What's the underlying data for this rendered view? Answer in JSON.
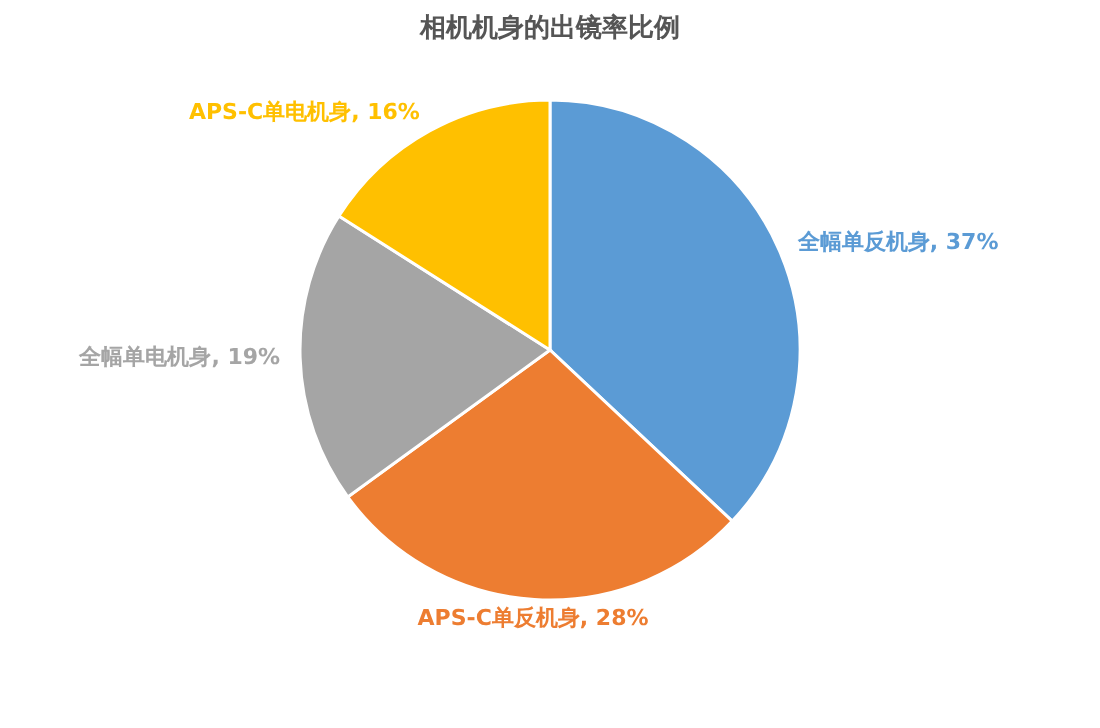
{
  "chart_data": {
    "type": "pie",
    "title": "相机机身的出镜率比例",
    "categories": [
      "全幅单反机身",
      "APS-C单反机身",
      "全幅单电机身",
      "APS-C单电机身"
    ],
    "values": [
      37,
      28,
      19,
      16
    ],
    "value_labels": [
      "37%",
      "28%",
      "19%",
      "16%"
    ],
    "colors": [
      "#5b9bd5",
      "#ed7d31",
      "#a5a5a5",
      "#ffc000"
    ],
    "legend": false
  }
}
